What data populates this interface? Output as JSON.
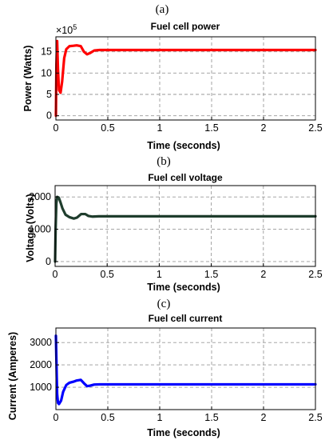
{
  "chart_data": [
    {
      "type": "line",
      "panel_label": "(a)",
      "title": "Fuel cell power",
      "xlabel": "Time (seconds)",
      "ylabel": "Power (Watts)",
      "y_multiplier_label": "×10",
      "y_multiplier_exponent": "5",
      "xlim": [
        0,
        2.5
      ],
      "ylim": [
        -1,
        18.5
      ],
      "xticks": [
        0,
        0.5,
        1,
        1.5,
        2,
        2.5
      ],
      "xtick_labels": [
        "0",
        "0.5",
        "1",
        "1.5",
        "2",
        "2.5"
      ],
      "yticks": [
        0,
        5,
        10,
        15
      ],
      "ytick_labels": [
        "0",
        "5",
        "10",
        "15"
      ],
      "grid": true,
      "color": "#ff0000",
      "series": [
        {
          "x": [
            0,
            0.005,
            0.012,
            0.02,
            0.03,
            0.045,
            0.06,
            0.08,
            0.1,
            0.13,
            0.17,
            0.2,
            0.24,
            0.27,
            0.3,
            0.33,
            0.37,
            0.42,
            0.5,
            1,
            1.5,
            2,
            2.5
          ],
          "y": [
            0,
            12,
            17.5,
            11,
            6,
            5.4,
            8,
            13.5,
            15.6,
            16.3,
            16.4,
            16.5,
            16.3,
            15.0,
            14.4,
            14.7,
            15.3,
            15.4,
            15.4,
            15.4,
            15.4,
            15.4,
            15.4
          ]
        }
      ]
    },
    {
      "type": "line",
      "panel_label": "(b)",
      "title": "Fuel cell voltage",
      "xlabel": "Time (seconds)",
      "ylabel": "Voltage (Volts)",
      "xlim": [
        0,
        2.5
      ],
      "ylim": [
        -150,
        2350
      ],
      "xticks": [
        0,
        0.5,
        1,
        1.5,
        2,
        2.5
      ],
      "xtick_labels": [
        "0",
        "0.5",
        "1",
        "1.5",
        "2",
        "2.5"
      ],
      "yticks": [
        0,
        1000,
        2000
      ],
      "ytick_labels": [
        "0",
        "1000",
        "2000"
      ],
      "grid": true,
      "color": "#1f3d2d",
      "series": [
        {
          "x": [
            0,
            0.005,
            0.012,
            0.02,
            0.035,
            0.05,
            0.07,
            0.1,
            0.14,
            0.18,
            0.21,
            0.25,
            0.29,
            0.32,
            0.36,
            0.42,
            0.5,
            1,
            1.5,
            2,
            2.5
          ],
          "y": [
            0,
            1000,
            1800,
            2000,
            1980,
            1850,
            1650,
            1450,
            1370,
            1330,
            1360,
            1470,
            1470,
            1410,
            1390,
            1400,
            1400,
            1400,
            1400,
            1400,
            1400
          ]
        }
      ]
    },
    {
      "type": "line",
      "panel_label": "(c)",
      "title": "Fuel cell current",
      "xlabel": "Time (seconds)",
      "ylabel": "Current (Amperes)",
      "xlim": [
        0,
        2.5
      ],
      "ylim": [
        0,
        3650
      ],
      "xticks": [
        0,
        0.5,
        1,
        1.5,
        2,
        2.5
      ],
      "xtick_labels": [
        "0",
        "0.5",
        "1",
        "1.5",
        "2",
        "2.5"
      ],
      "yticks": [
        1000,
        2000,
        3000
      ],
      "ytick_labels": [
        "1000",
        "2000",
        "3000"
      ],
      "grid": true,
      "color": "#0000ff",
      "series": [
        {
          "x": [
            0,
            0.004,
            0.008,
            0.012,
            0.02,
            0.03,
            0.05,
            0.07,
            0.1,
            0.13,
            0.17,
            0.2,
            0.24,
            0.27,
            0.3,
            0.33,
            0.37,
            0.42,
            0.5,
            1,
            1.5,
            2,
            2.5
          ],
          "y": [
            3300,
            2400,
            1500,
            700,
            300,
            250,
            400,
            800,
            1100,
            1200,
            1250,
            1300,
            1330,
            1180,
            1050,
            1070,
            1120,
            1130,
            1130,
            1130,
            1130,
            1130,
            1130
          ]
        }
      ]
    }
  ]
}
